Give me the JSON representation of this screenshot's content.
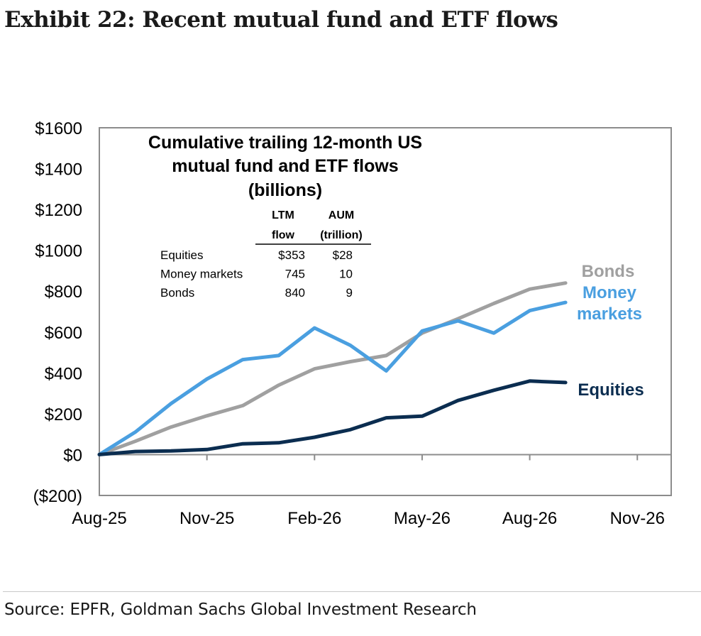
{
  "exhibit_title": "Exhibit 22: Recent mutual fund and ETF flows",
  "source": "Source: EPFR, Goldman Sachs Global Investment Research",
  "chart_data": {
    "type": "line",
    "title_lines": [
      "Cumulative trailing 12-month US",
      "mutual fund and ETF flows",
      "(billions)"
    ],
    "x": [
      "Aug-25",
      "Sep-25",
      "Oct-25",
      "Nov-25",
      "Dec-25",
      "Jan-26",
      "Feb-26",
      "Mar-26",
      "Apr-26",
      "May-26",
      "Jun-26",
      "Jul-26",
      "Aug-26",
      "Sep-26"
    ],
    "x_ticks": [
      "Aug-25",
      "Nov-25",
      "Feb-26",
      "May-26",
      "Aug-26",
      "Nov-26"
    ],
    "ylim": [
      -200,
      1600
    ],
    "y_ticks": [
      -200,
      0,
      200,
      400,
      600,
      800,
      1000,
      1200,
      1400,
      1600
    ],
    "y_tick_labels": [
      "($200)",
      "$0",
      "$200",
      "$400",
      "$600",
      "$800",
      "$1000",
      "$1200",
      "$1400",
      "$1600"
    ],
    "grid": false,
    "series": [
      {
        "name": "Bonds",
        "label_lines": [
          "Bonds"
        ],
        "color": "#a0a0a0",
        "values": [
          0,
          65,
          135,
          190,
          240,
          340,
          420,
          455,
          485,
          595,
          665,
          740,
          810,
          840
        ]
      },
      {
        "name": "Money markets",
        "label_lines": [
          "Money",
          "markets"
        ],
        "color": "#4a9fe0",
        "values": [
          0,
          110,
          250,
          370,
          465,
          485,
          620,
          535,
          410,
          605,
          655,
          595,
          705,
          745
        ]
      },
      {
        "name": "Equities",
        "label_lines": [
          "Equities"
        ],
        "color": "#0b2d50",
        "values": [
          0,
          15,
          18,
          25,
          53,
          58,
          85,
          122,
          180,
          188,
          265,
          315,
          360,
          353
        ]
      }
    ],
    "table": {
      "headers": [
        [
          "LTM",
          "flow"
        ],
        [
          "AUM",
          "(trillion)"
        ]
      ],
      "rows": [
        {
          "label": "Equities",
          "flow": "$353",
          "aum": "$28"
        },
        {
          "label": "Money markets",
          "flow": "745",
          "aum": "10"
        },
        {
          "label": "Bonds",
          "flow": "840",
          "aum": "9"
        }
      ]
    }
  }
}
